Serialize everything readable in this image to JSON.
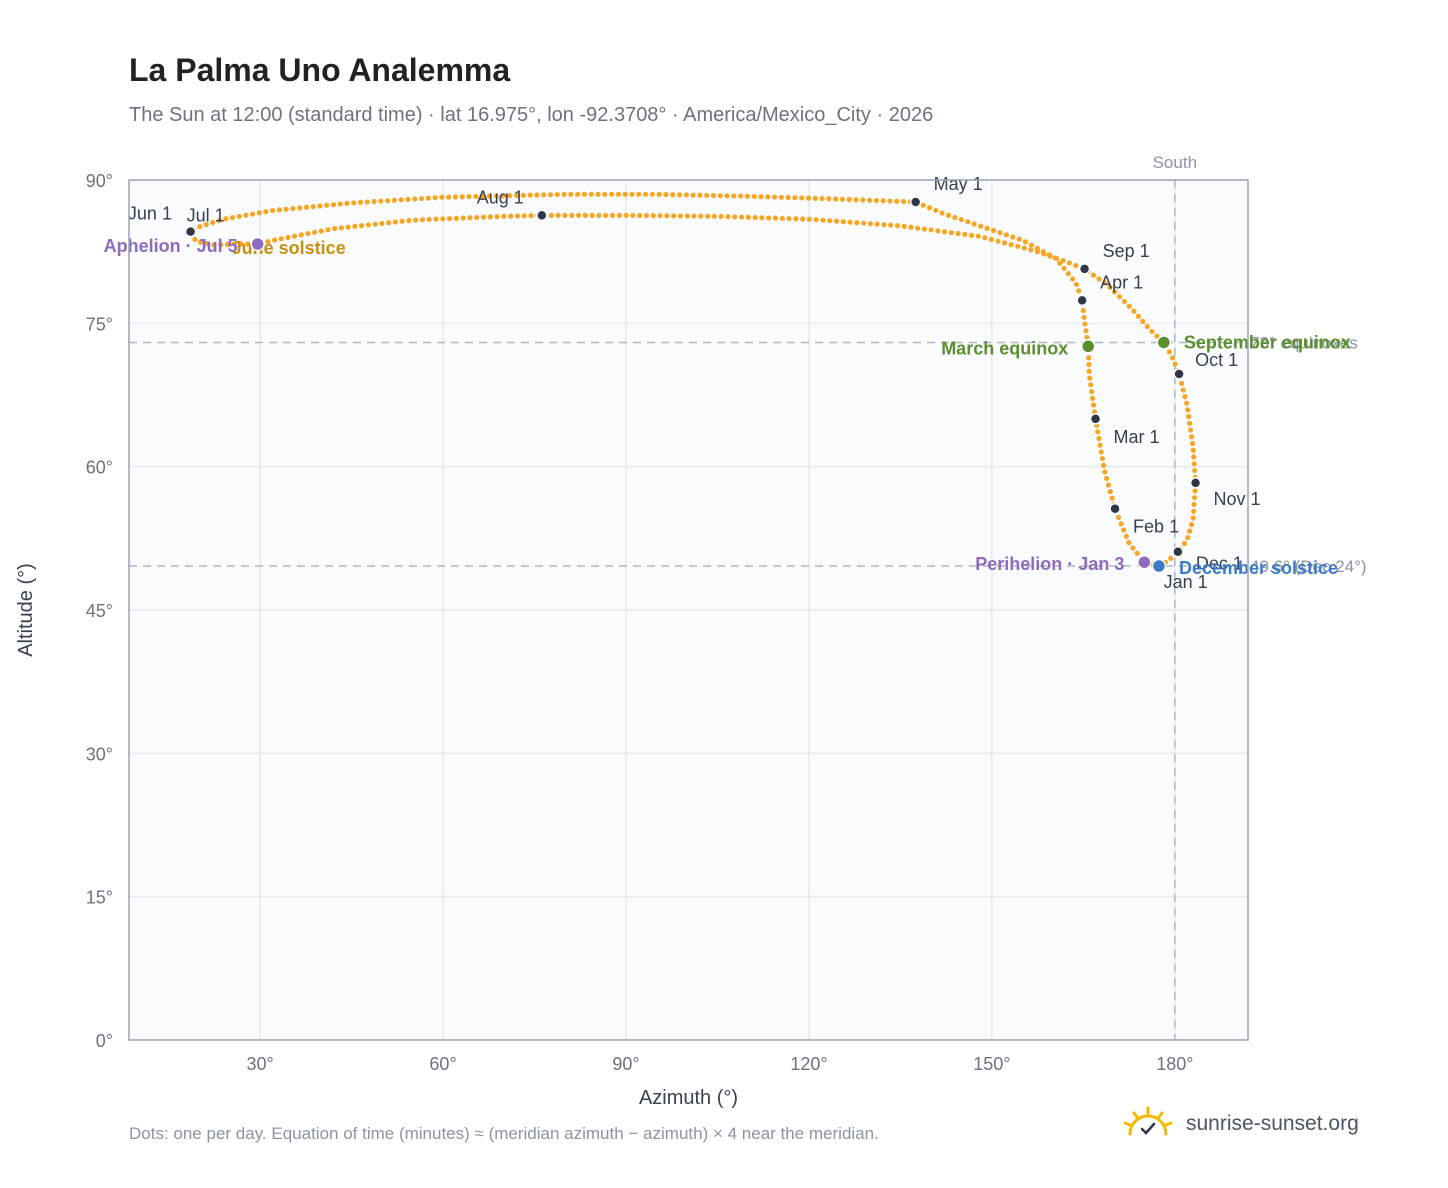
{
  "header": {
    "title": "La Palma Uno Analemma",
    "subtitle": "The Sun at 12:00 (standard time) · lat 16.975°, lon -92.3708° · America/Mexico_City · 2026"
  },
  "footer": {
    "note": "Dots: one per day. Equation of time (minutes) ≈ (meridian azimuth − azimuth) × 4 near the meridian.",
    "brand": "sunrise-sunset.org"
  },
  "colors": {
    "curve": "#f5a623",
    "month_marker": "#2d3748",
    "equinox": "#5a8f2e",
    "june_solstice": "#c8900f",
    "december_solstice": "#3b7ac9",
    "apsis": "#8e6bbf",
    "axis": "#9aa5b4",
    "grid": "#e6e9ee",
    "plot_bg": "#f9fbfd"
  },
  "chart_data": {
    "type": "scatter",
    "title": "La Palma Uno Analemma",
    "xlabel": "Azimuth (°)",
    "ylabel": "Altitude (°)",
    "xlim": [
      8.5,
      192
    ],
    "ylim": [
      0,
      90
    ],
    "xticks": [
      30,
      60,
      90,
      120,
      150,
      180
    ],
    "xtick_labels": [
      "30°",
      "60°",
      "90°",
      "120°",
      "150°",
      "180°"
    ],
    "yticks": [
      0,
      15,
      30,
      45,
      60,
      75,
      90
    ],
    "ytick_labels": [
      "0°",
      "15°",
      "30°",
      "45°",
      "60°",
      "75°",
      "90°"
    ],
    "grid": true,
    "meridian": {
      "azimuth": 180,
      "label": "South"
    },
    "reference_lines": [
      {
        "altitude": 73.0,
        "label": "73° equinoxes"
      },
      {
        "altitude": 49.6,
        "label": "49.6° (Dec 24°)"
      }
    ],
    "month_markers": [
      {
        "label": "Jan 1",
        "az": 177.5,
        "alt": 49.6
      },
      {
        "label": "Feb 1",
        "az": 170.2,
        "alt": 55.6
      },
      {
        "label": "Mar 1",
        "az": 167.0,
        "alt": 65.0
      },
      {
        "label": "Apr 1",
        "az": 164.8,
        "alt": 77.4
      },
      {
        "label": "May 1",
        "az": 137.5,
        "alt": 87.7
      },
      {
        "label": "Jun 1",
        "az": 18.5,
        "alt": 84.6
      },
      {
        "label": "Jul 1",
        "az": 18.6,
        "alt": 84.6
      },
      {
        "label": "Aug 1",
        "az": 76.2,
        "alt": 86.3
      },
      {
        "label": "Sep 1",
        "az": 165.2,
        "alt": 80.7
      },
      {
        "label": "Oct 1",
        "az": 180.7,
        "alt": 69.7
      },
      {
        "label": "Nov 1",
        "az": 183.4,
        "alt": 58.3
      },
      {
        "label": "Dec 1",
        "az": 180.5,
        "alt": 51.1
      }
    ],
    "events": [
      {
        "label": "March equinox",
        "az": 165.8,
        "alt": 72.6,
        "kind": "equinox"
      },
      {
        "label": "September equinox",
        "az": 178.2,
        "alt": 73.0,
        "kind": "equinox"
      },
      {
        "label": "June solstice",
        "az": 29.6,
        "alt": 83.3,
        "kind": "june_solstice"
      },
      {
        "label": "December solstice",
        "az": 177.4,
        "alt": 49.6,
        "kind": "december_solstice"
      },
      {
        "label": "Perihelion · Jan 3",
        "az": 175.0,
        "alt": 50.0,
        "kind": "apsis"
      },
      {
        "label": "Aphelion · Jul 5",
        "az": 29.6,
        "alt": 83.3,
        "kind": "apsis"
      }
    ],
    "curve_points": [
      [
        177.5,
        49.6
      ],
      [
        175.0,
        50.0
      ],
      [
        172.5,
        52.0
      ],
      [
        170.2,
        55.6
      ],
      [
        168.5,
        59.5
      ],
      [
        167.0,
        65.0
      ],
      [
        166.0,
        69.5
      ],
      [
        165.8,
        72.6
      ],
      [
        165.2,
        75.2
      ],
      [
        164.8,
        77.4
      ],
      [
        163.8,
        79.2
      ],
      [
        160.5,
        81.8
      ],
      [
        155.0,
        83.7
      ],
      [
        148.0,
        85.2
      ],
      [
        142.0,
        86.5
      ],
      [
        137.5,
        87.7
      ],
      [
        125.0,
        88.0
      ],
      [
        110.0,
        88.3
      ],
      [
        95.0,
        88.5
      ],
      [
        80.0,
        88.5
      ],
      [
        60.0,
        88.2
      ],
      [
        45.0,
        87.6
      ],
      [
        32.0,
        86.8
      ],
      [
        24.0,
        85.9
      ],
      [
        19.5,
        85.0
      ],
      [
        18.5,
        84.6
      ],
      [
        19.5,
        83.6
      ],
      [
        22.5,
        83.2
      ],
      [
        26.0,
        83.3
      ],
      [
        29.6,
        83.3
      ],
      [
        33.0,
        83.8
      ],
      [
        42.0,
        84.9
      ],
      [
        55.0,
        85.8
      ],
      [
        70.0,
        86.2
      ],
      [
        76.2,
        86.3
      ],
      [
        90.0,
        86.3
      ],
      [
        105.0,
        86.2
      ],
      [
        120.0,
        85.9
      ],
      [
        135.0,
        85.2
      ],
      [
        148.0,
        84.1
      ],
      [
        157.0,
        82.6
      ],
      [
        162.0,
        81.5
      ],
      [
        165.2,
        80.7
      ],
      [
        169.0,
        79.0
      ],
      [
        173.0,
        76.5
      ],
      [
        176.0,
        74.3
      ],
      [
        178.2,
        73.0
      ],
      [
        179.5,
        71.6
      ],
      [
        180.7,
        69.7
      ],
      [
        182.0,
        66.5
      ],
      [
        183.0,
        62.0
      ],
      [
        183.4,
        58.3
      ],
      [
        183.0,
        54.5
      ],
      [
        182.0,
        52.3
      ],
      [
        180.5,
        51.1
      ],
      [
        179.0,
        50.2
      ],
      [
        177.5,
        49.6
      ]
    ]
  }
}
